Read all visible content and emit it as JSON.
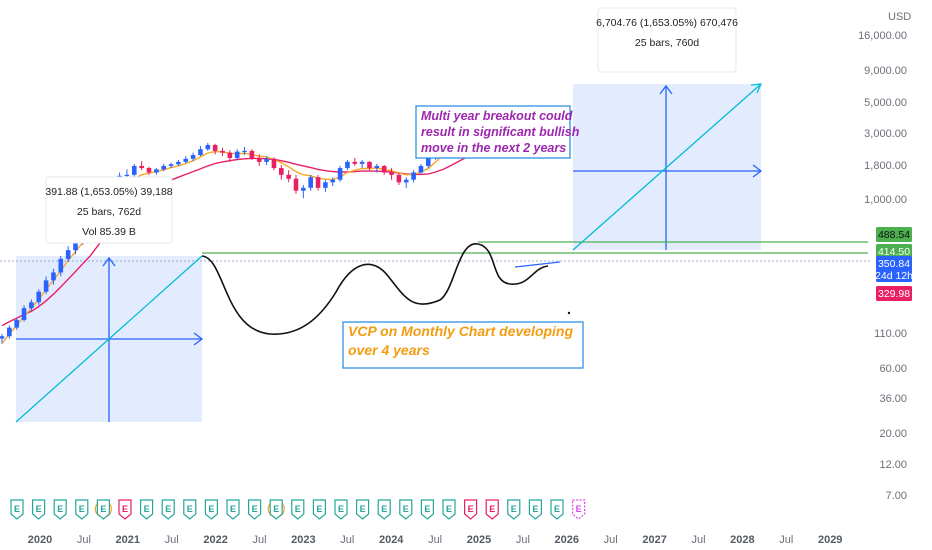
{
  "chart_data": {
    "type": "candlestick",
    "currency": "USD",
    "scale": "log",
    "y_ticks": [
      "16,000.00",
      "9,000.00",
      "5,000.00",
      "3,000.00",
      "1,800.00",
      "1,000.00",
      "110.00",
      "60.00",
      "36.00",
      "20.00",
      "12.00",
      "7.00"
    ],
    "x_ticks": [
      {
        "label": "2020",
        "year": true
      },
      {
        "label": "Jul",
        "year": false
      },
      {
        "label": "2021",
        "year": true
      },
      {
        "label": "Jul",
        "year": false
      },
      {
        "label": "2022",
        "year": true
      },
      {
        "label": "Jul",
        "year": false
      },
      {
        "label": "2023",
        "year": true
      },
      {
        "label": "Jul",
        "year": false
      },
      {
        "label": "2024",
        "year": true
      },
      {
        "label": "Jul",
        "year": false
      },
      {
        "label": "2025",
        "year": true
      },
      {
        "label": "Jul",
        "year": false
      },
      {
        "label": "2026",
        "year": true
      },
      {
        "label": "Jul",
        "year": false
      },
      {
        "label": "2027",
        "year": true
      },
      {
        "label": "Jul",
        "year": false
      },
      {
        "label": "2028",
        "year": true
      },
      {
        "label": "Jul",
        "year": false
      },
      {
        "label": "2029",
        "year": true
      }
    ],
    "price_badges": [
      {
        "label": "488.54",
        "color": "#4caf50"
      },
      {
        "label": "414.50",
        "color": "#4caf50"
      },
      {
        "label": "350.84",
        "sub": "24d 12h",
        "color": "#2962ff"
      },
      {
        "label": "329.98",
        "color": "#e91e63"
      }
    ],
    "measures": [
      {
        "lines": [
          "391.88 (1,653.05%) 39,188",
          "25 bars, 762d",
          "Vol 85.39 B"
        ]
      },
      {
        "lines": [
          "6,704.76 (1,653.05%) 670,476",
          "25 bars, 760d"
        ]
      }
    ],
    "callouts": [
      {
        "lines": [
          "Multi year breakout could",
          "result in significant bullish",
          "move in the next 2 years"
        ],
        "color": "#9c27b0"
      },
      {
        "lines": [
          "VCP on Monthly Chart developing",
          "over 4 years"
        ],
        "color": "#f39c12"
      }
    ],
    "earnings_markers": [
      "E",
      "E",
      "E",
      "E",
      "E",
      "E",
      "E",
      "E",
      "E",
      "E",
      "E",
      "E",
      "E",
      "E",
      "E",
      "E",
      "E",
      "E",
      "E",
      "E",
      "E",
      "E",
      "E",
      "E",
      "E",
      "E",
      "E"
    ],
    "candles": [
      [
        15,
        16,
        14,
        15.5
      ],
      [
        15.5,
        18,
        15,
        17.5
      ],
      [
        17.5,
        20,
        17,
        19.5
      ],
      [
        19.5,
        24,
        19,
        23
      ],
      [
        23,
        26,
        22,
        25
      ],
      [
        25,
        30,
        24,
        29
      ],
      [
        29,
        36,
        28,
        34
      ],
      [
        34,
        40,
        32,
        38
      ],
      [
        38,
        48,
        36,
        46
      ],
      [
        46,
        55,
        44,
        52
      ],
      [
        52,
        60,
        49,
        58
      ],
      [
        58,
        70,
        56,
        66
      ],
      [
        66,
        80,
        62,
        74
      ],
      [
        74,
        100,
        72,
        95
      ],
      [
        95,
        120,
        92,
        112
      ],
      [
        112,
        135,
        105,
        128
      ],
      [
        128,
        155,
        124,
        148
      ],
      [
        148,
        162,
        140,
        150
      ],
      [
        150,
        175,
        146,
        170
      ],
      [
        170,
        182,
        160,
        165
      ],
      [
        165,
        168,
        150,
        155
      ],
      [
        155,
        165,
        150,
        162
      ],
      [
        162,
        175,
        158,
        170
      ],
      [
        170,
        178,
        165,
        174
      ],
      [
        174,
        185,
        170,
        180
      ],
      [
        180,
        195,
        176,
        188
      ],
      [
        188,
        205,
        182,
        198
      ],
      [
        198,
        225,
        195,
        215
      ],
      [
        215,
        235,
        210,
        228
      ],
      [
        228,
        232,
        200,
        210
      ],
      [
        210,
        220,
        195,
        205
      ],
      [
        205,
        212,
        180,
        190
      ],
      [
        190,
        215,
        185,
        208
      ],
      [
        208,
        222,
        198,
        210
      ],
      [
        210,
        215,
        185,
        190
      ],
      [
        190,
        200,
        170,
        180
      ],
      [
        180,
        195,
        172,
        188
      ],
      [
        188,
        192,
        160,
        165
      ],
      [
        165,
        172,
        140,
        150
      ],
      [
        150,
        160,
        135,
        142
      ],
      [
        142,
        150,
        115,
        120
      ],
      [
        120,
        130,
        108,
        125
      ],
      [
        125,
        150,
        120,
        145
      ],
      [
        145,
        150,
        120,
        125
      ],
      [
        125,
        140,
        118,
        135
      ],
      [
        135,
        145,
        128,
        140
      ],
      [
        140,
        170,
        136,
        165
      ],
      [
        165,
        185,
        160,
        180
      ],
      [
        180,
        190,
        170,
        175
      ],
      [
        175,
        185,
        165,
        180
      ],
      [
        180,
        182,
        160,
        165
      ],
      [
        165,
        175,
        155,
        170
      ],
      [
        170,
        172,
        150,
        155
      ],
      [
        155,
        165,
        140,
        150
      ],
      [
        150,
        155,
        130,
        135
      ],
      [
        135,
        145,
        125,
        140
      ],
      [
        140,
        160,
        135,
        155
      ],
      [
        155,
        175,
        150,
        170
      ],
      [
        170,
        195,
        165,
        190
      ],
      [
        190,
        230,
        185,
        225
      ],
      [
        225,
        260,
        220,
        255
      ],
      [
        255,
        300,
        245,
        290
      ],
      [
        290,
        320,
        275,
        305
      ],
      [
        305,
        315,
        270,
        280
      ],
      [
        280,
        290,
        240,
        250
      ],
      [
        250,
        270,
        210,
        215
      ],
      [
        215,
        240,
        205,
        235
      ],
      [
        235,
        285,
        230,
        280
      ],
      [
        280,
        300,
        265,
        290
      ],
      [
        290,
        305,
        275,
        295
      ],
      [
        295,
        310,
        280,
        300
      ],
      [
        300,
        320,
        290,
        315
      ],
      [
        315,
        325,
        305,
        320
      ],
      [
        320,
        330,
        310,
        325
      ],
      [
        325,
        340,
        320,
        335
      ],
      [
        335,
        352,
        330,
        351
      ]
    ],
    "ema_fast": [
      14,
      16,
      18,
      20.5,
      23,
      26,
      30,
      34,
      39,
      45,
      51,
      58,
      66,
      76,
      88,
      102,
      116,
      130,
      142,
      150,
      154,
      157,
      161,
      166,
      170,
      176,
      183,
      193,
      204,
      208,
      207,
      203,
      202,
      203,
      200,
      195,
      193,
      186,
      178,
      168,
      157,
      150,
      148,
      143,
      141,
      140,
      146,
      155,
      160,
      164,
      164,
      165,
      162,
      159,
      154,
      150,
      151,
      156,
      164,
      180,
      198,
      222,
      245,
      255,
      254,
      244,
      240,
      250,
      260,
      268,
      276,
      285,
      293,
      300,
      308,
      316
    ],
    "ema_slow": [
      18,
      19,
      20,
      21,
      22,
      23.5,
      25.5,
      28,
      31,
      34.5,
      38.5,
      43,
      48,
      55,
      63,
      72,
      82,
      92,
      102,
      111,
      119,
      126,
      133,
      139,
      145,
      151,
      157,
      163,
      170,
      176,
      180,
      183,
      186,
      188,
      189,
      189,
      188,
      186,
      183,
      179,
      174,
      170,
      166,
      162,
      159,
      157,
      156,
      156,
      157,
      158,
      158,
      158,
      157,
      156,
      154,
      152,
      151,
      151,
      152,
      156,
      162,
      170,
      180,
      190,
      198,
      204,
      210,
      218,
      226,
      234,
      242,
      250,
      257,
      264,
      271,
      278
    ]
  }
}
